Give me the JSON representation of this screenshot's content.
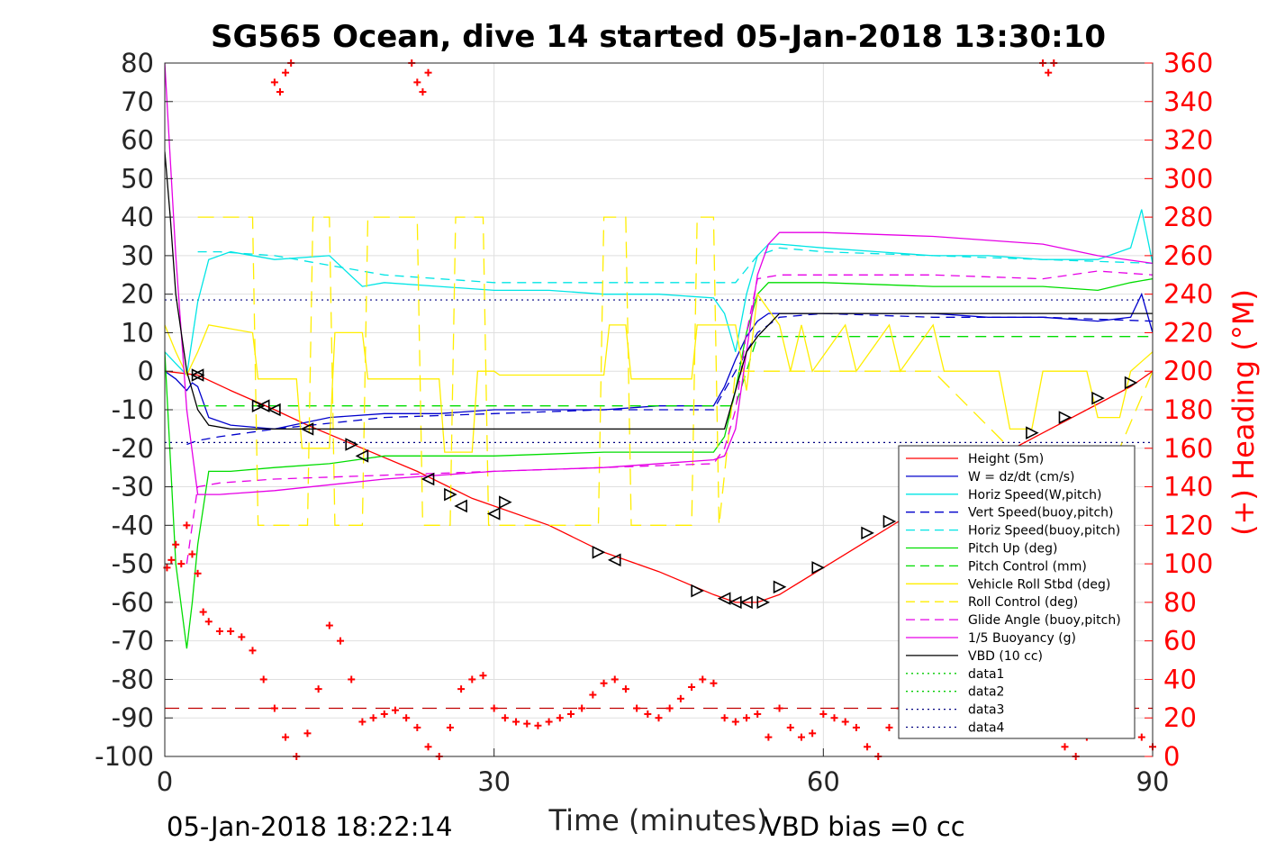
{
  "chart_data": {
    "type": "line",
    "title": "SG565 Ocean, dive 14 started 05-Jan-2018 13:30:10",
    "xlabel": "Time (minutes)",
    "ylabel_right": "(+) Heading (°M)",
    "xlim": [
      0,
      90
    ],
    "ylim": [
      -100,
      80
    ],
    "ylim_right": [
      0,
      360
    ],
    "xticks": [
      0,
      30,
      60,
      90
    ],
    "yticks": [
      80,
      70,
      60,
      50,
      40,
      30,
      20,
      10,
      0,
      -10,
      -20,
      -30,
      -40,
      -50,
      -60,
      -70,
      -80,
      -90,
      -100
    ],
    "yticks_right": [
      360,
      340,
      320,
      300,
      280,
      260,
      240,
      220,
      200,
      180,
      160,
      140,
      120,
      100,
      80,
      60,
      40,
      20,
      0
    ],
    "grid": true,
    "legend_position": "lower-right",
    "footer_left": "05-Jan-2018 18:22:14",
    "footer_right": "VBD bias =0 cc",
    "hlines": [
      {
        "y": 18.5,
        "color": "#000080",
        "style": "dotted"
      },
      {
        "y": -18.5,
        "color": "#000080",
        "style": "dotted"
      },
      {
        "y": -87.5,
        "color": "#c00000",
        "style": "dashed"
      }
    ],
    "series": [
      {
        "name": "Height (5m)",
        "color": "#ff0000",
        "dash": "",
        "x": [
          0,
          3,
          6,
          10,
          13,
          18,
          23,
          28,
          35,
          40,
          45,
          50,
          52,
          54,
          56,
          60,
          64,
          68,
          72,
          76,
          80,
          84,
          88,
          90
        ],
        "y": [
          0,
          -1,
          -5,
          -10,
          -14,
          -20,
          -26,
          -33,
          -40,
          -47,
          -52,
          -58,
          -60,
          -60,
          -58,
          -51,
          -44,
          -37,
          -29,
          -22,
          -16,
          -10,
          -4,
          0
        ]
      },
      {
        "name": "W = dz/dt (cm/s)",
        "color": "#0000cc",
        "dash": "",
        "x": [
          0,
          1,
          2,
          2.5,
          3,
          4,
          6,
          10,
          15,
          20,
          25,
          30,
          35,
          40,
          45,
          50,
          51,
          52,
          53,
          54,
          55,
          56,
          60,
          65,
          70,
          75,
          80,
          85,
          88,
          89,
          90
        ],
        "y": [
          0,
          -2,
          -5,
          -3,
          -4,
          -12,
          -14,
          -15,
          -12,
          -11,
          -11,
          -10,
          -10,
          -10,
          -9,
          -9,
          -4,
          3,
          9,
          13,
          15,
          15,
          15,
          15,
          15,
          14,
          14,
          13,
          14,
          20,
          10
        ]
      },
      {
        "name": "Horiz Speed(W,pitch)",
        "color": "#00e5e5",
        "dash": "",
        "x": [
          0,
          1,
          2,
          3,
          4,
          6,
          10,
          15,
          18,
          20,
          25,
          30,
          35,
          40,
          45,
          50,
          51,
          52,
          53,
          54,
          55,
          56,
          60,
          65,
          70,
          75,
          80,
          85,
          88,
          89,
          90
        ],
        "y": [
          5,
          2,
          -1,
          18,
          29,
          31,
          29,
          30,
          22,
          23,
          22,
          21,
          21,
          20,
          20,
          19,
          15,
          5,
          20,
          30,
          33,
          33,
          32,
          31,
          30,
          30,
          29,
          29,
          32,
          42,
          28
        ]
      },
      {
        "name": "Vert Speed(buoy,pitch)",
        "color": "#0000cc",
        "dash": "10,7",
        "x": [
          2,
          3,
          5,
          10,
          20,
          30,
          40,
          50,
          52,
          54,
          56,
          60,
          70,
          80,
          90
        ],
        "y": [
          -19,
          -18,
          -17,
          -15,
          -12,
          -11,
          -10,
          -10,
          0,
          10,
          14,
          15,
          14,
          14,
          13
        ]
      },
      {
        "name": "Horiz Speed(buoy,pitch)",
        "color": "#00e5e5",
        "dash": "10,7",
        "x": [
          3,
          5,
          10,
          20,
          30,
          40,
          50,
          52,
          54,
          56,
          60,
          70,
          80,
          90
        ],
        "y": [
          31,
          31,
          30,
          25,
          23,
          23,
          23,
          23,
          30,
          32,
          31,
          30,
          29,
          28
        ]
      },
      {
        "name": "Pitch Up (deg)",
        "color": "#00dd00",
        "dash": "",
        "x": [
          0,
          1,
          2,
          2.5,
          3,
          4,
          6,
          10,
          15,
          20,
          30,
          40,
          50,
          51,
          52,
          53,
          54,
          55,
          56,
          60,
          70,
          80,
          85,
          88,
          90
        ],
        "y": [
          5,
          -50,
          -72,
          -60,
          -45,
          -26,
          -26,
          -25,
          -24,
          -22,
          -22,
          -21,
          -21,
          -17,
          -5,
          10,
          20,
          23,
          23,
          23,
          22,
          22,
          21,
          23,
          24
        ]
      },
      {
        "name": "Pitch Control (mm)",
        "color": "#00dd00",
        "dash": "12,8",
        "x": [
          3,
          10,
          20,
          30,
          40,
          50,
          52,
          54,
          56,
          60,
          70,
          80,
          90
        ],
        "y": [
          -9,
          -9,
          -9,
          -9,
          -9,
          -9,
          -9,
          9,
          9,
          9,
          9,
          9,
          9
        ]
      },
      {
        "name": "Vehicle Roll Stbd (deg)",
        "color": "#ffee00",
        "dash": "",
        "x": [
          0,
          1,
          2,
          3,
          4,
          8,
          8.5,
          12,
          12.5,
          15,
          15.5,
          18,
          18.5,
          25,
          25.5,
          28,
          28.5,
          30,
          30.5,
          40,
          40.5,
          42,
          42.5,
          48,
          48.5,
          52,
          53,
          54,
          56,
          57,
          58,
          59,
          62,
          63,
          66,
          67,
          70,
          71,
          76,
          77,
          79,
          80,
          84,
          85,
          87,
          88,
          90
        ],
        "y": [
          12,
          5,
          -1,
          5,
          12,
          10,
          -2,
          -2,
          -20,
          -20,
          10,
          10,
          -2,
          -2,
          -21,
          -21,
          0,
          0,
          -1,
          -1,
          12,
          12,
          -2,
          -2,
          12,
          12,
          -5,
          20,
          12,
          0,
          12,
          0,
          12,
          0,
          12,
          0,
          12,
          0,
          0,
          -15,
          -15,
          0,
          0,
          -12,
          -12,
          0,
          5
        ]
      },
      {
        "name": "Roll Control (deg)",
        "color": "#ffee00",
        "dash": "18,10",
        "x": [
          3,
          4,
          8,
          8.5,
          13,
          13.5,
          15,
          15.5,
          18,
          18.5,
          23,
          23.5,
          26,
          26.5,
          29,
          29.5,
          39.5,
          40,
          42,
          42.5,
          48,
          48.5,
          50,
          50.5,
          52,
          56,
          60,
          70,
          77,
          80,
          83,
          87,
          90
        ],
        "y": [
          40,
          40,
          40,
          -40,
          -40,
          40,
          40,
          -40,
          -40,
          40,
          40,
          -40,
          -40,
          40,
          40,
          -40,
          -40,
          40,
          40,
          -40,
          -40,
          40,
          40,
          -40,
          0,
          0,
          0,
          0,
          -20,
          -20,
          -20,
          -20,
          0
        ]
      },
      {
        "name": "Glide Angle (buoy,pitch)",
        "color": "#e600e6",
        "dash": "10,7",
        "x": [
          2,
          3,
          5,
          10,
          20,
          30,
          40,
          50,
          51,
          52,
          53,
          54,
          56,
          60,
          70,
          80,
          85,
          90
        ],
        "y": [
          -50,
          -30,
          -29,
          -28,
          -27,
          -26,
          -25,
          -24,
          -20,
          -10,
          10,
          24,
          25,
          25,
          25,
          24,
          26,
          25
        ]
      },
      {
        "name": "1/5 Buoyancy (g)",
        "color": "#e600e6",
        "dash": "",
        "x": [
          0,
          1,
          2,
          3,
          5,
          10,
          20,
          30,
          40,
          50,
          51,
          52,
          53,
          54,
          55,
          56,
          60,
          70,
          80,
          85,
          90
        ],
        "y": [
          80,
          30,
          -10,
          -32,
          -32,
          -31,
          -28,
          -26,
          -25,
          -23,
          -22,
          -15,
          5,
          25,
          33,
          36,
          36,
          35,
          33,
          30,
          28
        ]
      },
      {
        "name": "VBD (10 cc)",
        "color": "#000000",
        "dash": "",
        "x": [
          0,
          0.5,
          1,
          2,
          3,
          4,
          6,
          10,
          20,
          30,
          40,
          50,
          51,
          52,
          53,
          54,
          55,
          56,
          60,
          70,
          80,
          90
        ],
        "y": [
          57,
          40,
          20,
          0,
          -10,
          -14,
          -15,
          -15,
          -15,
          -15,
          -15,
          -15,
          -15,
          -5,
          5,
          9,
          12,
          15,
          15,
          15,
          15,
          15
        ]
      },
      {
        "name": "data1",
        "color": "#00cc00",
        "dash": "2,4",
        "x": [],
        "y": []
      },
      {
        "name": "data2",
        "color": "#00cc00",
        "dash": "2,4",
        "x": [],
        "y": []
      },
      {
        "name": "data3",
        "color": "#000080",
        "dash": "2,4",
        "x": [],
        "y": []
      },
      {
        "name": "data4",
        "color": "#000080",
        "dash": "2,4",
        "x": [],
        "y": []
      }
    ],
    "heading_markers": {
      "color": "#ff0000",
      "x": [
        0.2,
        0.6,
        1,
        1.5,
        2,
        2.5,
        3,
        3.5,
        4,
        5,
        6,
        7,
        8,
        9,
        10,
        11,
        12,
        13,
        14,
        15,
        16,
        17,
        18,
        19,
        20,
        21,
        22,
        23,
        24,
        25,
        26,
        27,
        28,
        29,
        30,
        31,
        32,
        33,
        34,
        35,
        36,
        37,
        38,
        39,
        40,
        41,
        42,
        43,
        44,
        45,
        46,
        47,
        48,
        49,
        50,
        51,
        52,
        53,
        54,
        55,
        56,
        57,
        58,
        59,
        60,
        61,
        62,
        63,
        64,
        65,
        66,
        67,
        68,
        69,
        70,
        71,
        72,
        73,
        74,
        75,
        76,
        77,
        78,
        79,
        80,
        81,
        82,
        83,
        84,
        85,
        86,
        87,
        88,
        89,
        90,
        10,
        10.5,
        11,
        11.5,
        22.5,
        23,
        23.5,
        24,
        80,
        80.5,
        81
      ],
      "y": [
        98,
        102,
        110,
        100,
        120,
        105,
        95,
        75,
        70,
        65,
        65,
        62,
        55,
        40,
        25,
        10,
        0,
        12,
        35,
        68,
        60,
        40,
        18,
        20,
        22,
        24,
        20,
        15,
        5,
        0,
        15,
        35,
        40,
        42,
        25,
        20,
        18,
        17,
        16,
        18,
        20,
        22,
        25,
        32,
        38,
        40,
        35,
        25,
        22,
        20,
        25,
        30,
        36,
        40,
        38,
        20,
        18,
        20,
        22,
        10,
        25,
        15,
        10,
        12,
        22,
        20,
        18,
        15,
        5,
        0,
        15,
        25,
        30,
        28,
        22,
        20,
        18,
        25,
        32,
        30,
        25,
        22,
        20,
        18,
        22,
        15,
        5,
        0,
        10,
        20,
        22,
        25,
        20,
        10,
        5,
        350,
        345,
        355,
        360,
        360,
        350,
        345,
        355,
        360,
        355,
        360
      ]
    },
    "glider_markers": {
      "down_x": [
        3,
        9,
        10,
        13,
        18,
        24,
        27,
        30,
        41,
        51,
        52,
        53
      ],
      "down_y": [
        -1,
        -9,
        -10,
        -15,
        -22,
        -28,
        -35,
        -37,
        -49,
        -59,
        -60,
        -60
      ],
      "up_x": [
        3,
        8.5,
        17,
        26,
        31,
        39.5,
        48.5,
        54.5,
        56,
        59.5,
        64,
        66,
        79,
        82,
        85,
        88
      ],
      "up_y": [
        -1,
        -9,
        -19,
        -32,
        -34,
        -47,
        -57,
        -60,
        -56,
        -51,
        -42,
        -39,
        -16,
        -12,
        -7,
        -3
      ]
    }
  }
}
